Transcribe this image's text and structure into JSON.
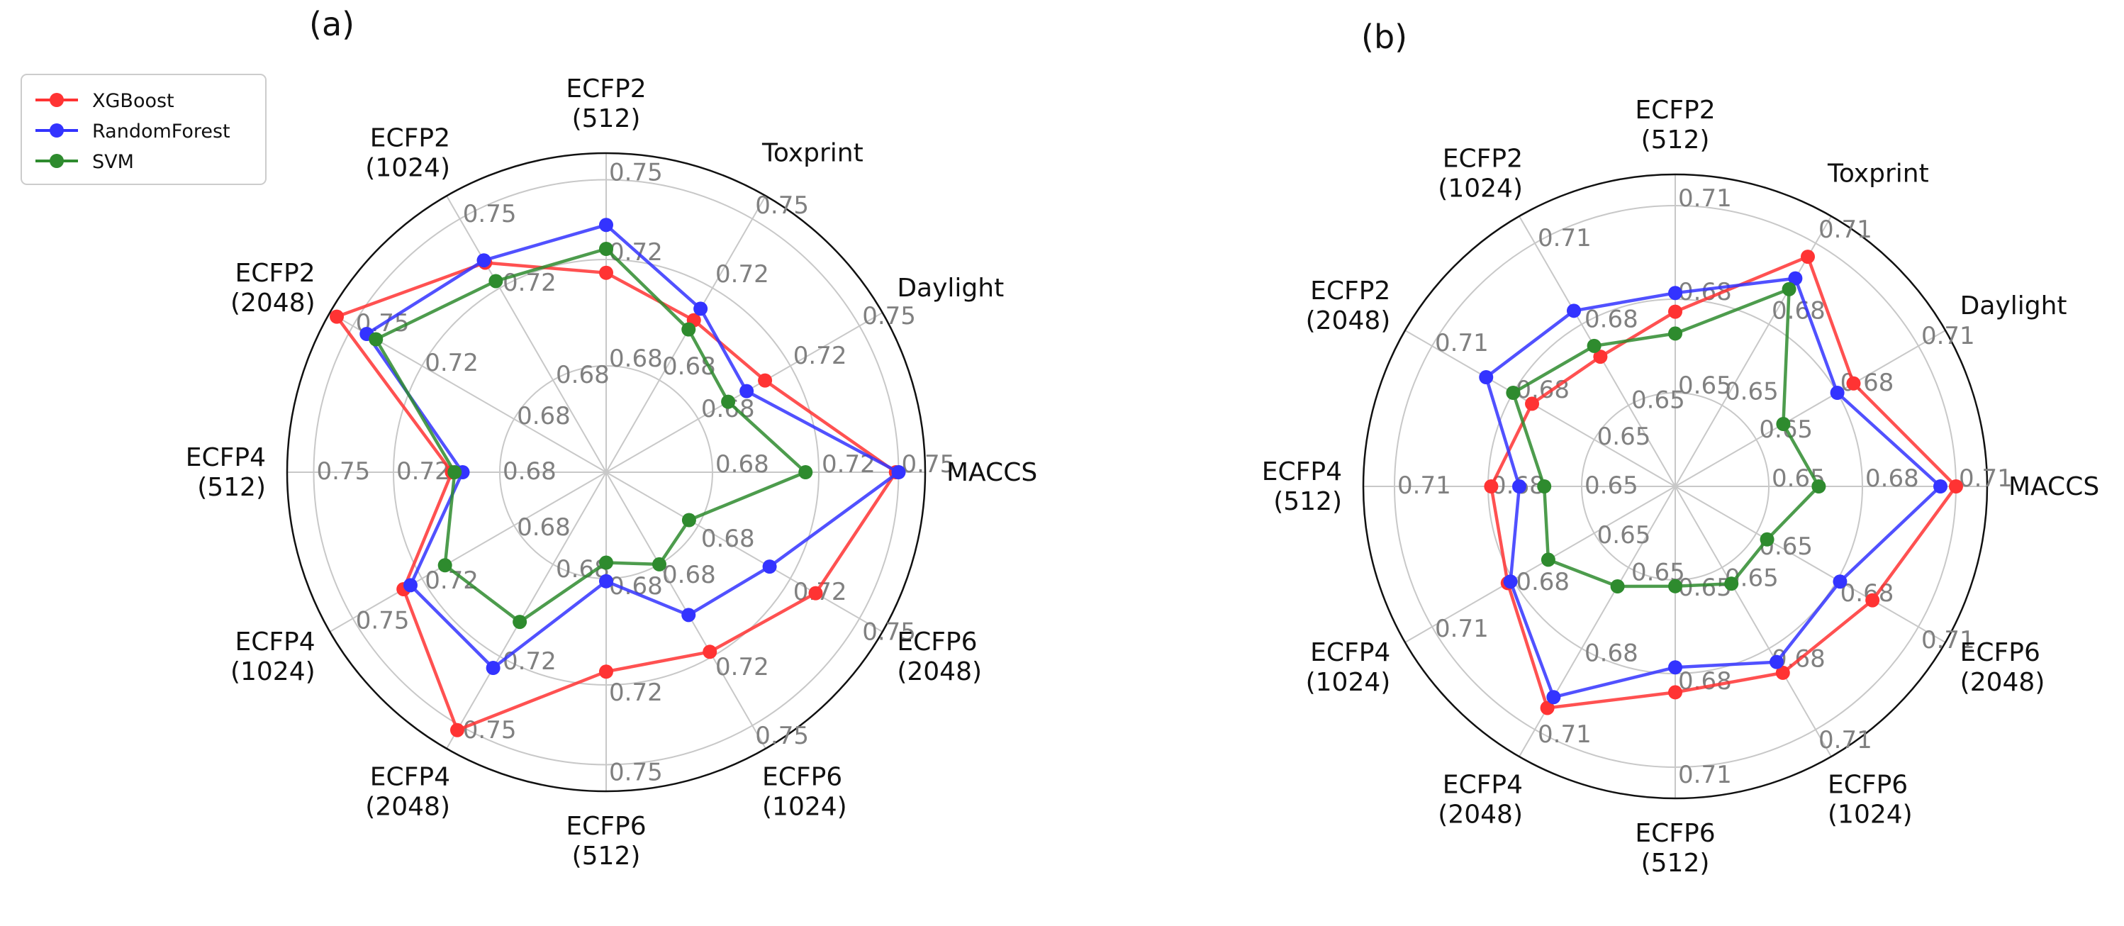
{
  "chart_data": [
    {
      "type": "radar",
      "panel_label": "(a)",
      "categories": [
        "MACCS",
        "Daylight",
        "Toxprint",
        "ECFP2\n(512)",
        "ECFP2\n(1024)",
        "ECFP2\n(2048)",
        "ECFP4\n(512)",
        "ECFP4\n(1024)",
        "ECFP4\n(2048)",
        "ECFP6\n(512)",
        "ECFP6\n(1024)",
        "ECFP6\n(2048)"
      ],
      "rlim": [
        0.64,
        0.76
      ],
      "ticks": [
        0.68,
        0.72,
        0.75
      ],
      "tick_labels": [
        "0.68",
        "0.72",
        "0.75"
      ],
      "series": [
        {
          "name": "XGBoost",
          "color": "#ff3333",
          "values": [
            0.749,
            0.709,
            0.706,
            0.715,
            0.731,
            0.757,
            0.698,
            0.728,
            0.752,
            0.715,
            0.718,
            0.731
          ]
        },
        {
          "name": "RandomForest",
          "color": "#3333ff",
          "values": [
            0.75,
            0.701,
            0.711,
            0.733,
            0.732,
            0.744,
            0.694,
            0.725,
            0.725,
            0.681,
            0.702,
            0.711
          ]
        },
        {
          "name": "SVM",
          "color": "#2e8b2e",
          "values": [
            0.715,
            0.693,
            0.702,
            0.724,
            0.723,
            0.74,
            0.697,
            0.71,
            0.705,
            0.674,
            0.68,
            0.676
          ]
        }
      ]
    },
    {
      "type": "radar",
      "panel_label": "(b)",
      "categories": [
        "MACCS",
        "Daylight",
        "Toxprint",
        "ECFP2\n(512)",
        "ECFP2\n(1024)",
        "ECFP2\n(2048)",
        "ECFP4\n(512)",
        "ECFP4\n(1024)",
        "ECFP4\n(2048)",
        "ECFP6\n(512)",
        "ECFP6\n(1024)",
        "ECFP6\n(2048)"
      ],
      "rlim": [
        0.62,
        0.72
      ],
      "ticks": [
        0.65,
        0.68,
        0.71
      ],
      "tick_labels": [
        "0.65",
        "0.68",
        "0.71"
      ],
      "series": [
        {
          "name": "XGBoost",
          "color": "#ff3333",
          "values": [
            0.71,
            0.686,
            0.705,
            0.676,
            0.668,
            0.673,
            0.679,
            0.682,
            0.702,
            0.686,
            0.689,
            0.693
          ]
        },
        {
          "name": "RandomForest",
          "color": "#3333ff",
          "values": [
            0.705,
            0.68,
            0.697,
            0.682,
            0.685,
            0.69,
            0.67,
            0.681,
            0.698,
            0.678,
            0.685,
            0.681
          ]
        },
        {
          "name": "SVM",
          "color": "#2e8b2e",
          "values": [
            0.666,
            0.66,
            0.693,
            0.669,
            0.672,
            0.68,
            0.662,
            0.667,
            0.657,
            0.652,
            0.656,
            0.654
          ]
        }
      ]
    }
  ],
  "legend": {
    "items": [
      {
        "name": "XGBoost",
        "color": "#ff3333"
      },
      {
        "name": "RandomForest",
        "color": "#3333ff"
      },
      {
        "name": "SVM",
        "color": "#2e8b2e"
      }
    ]
  }
}
